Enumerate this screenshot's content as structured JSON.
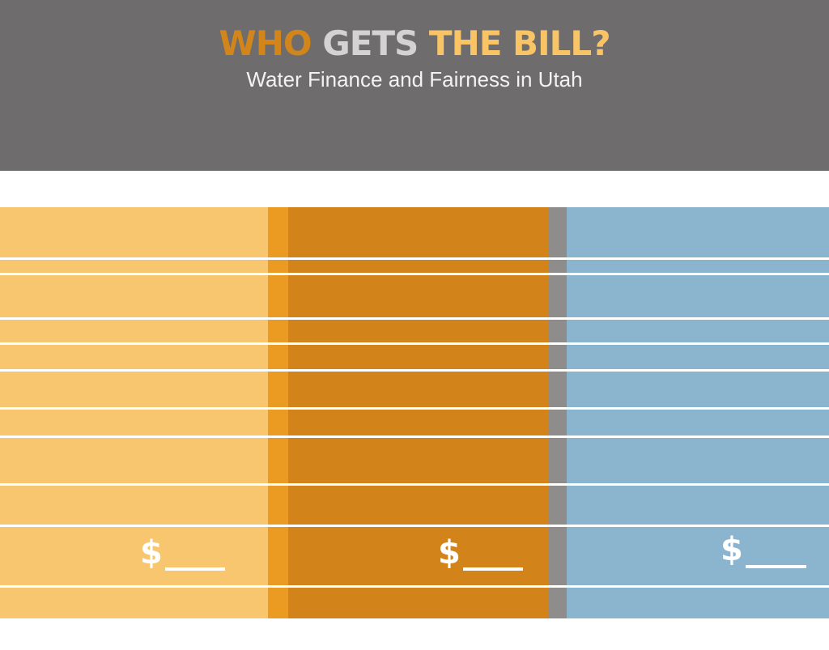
{
  "header": {
    "title_word1": "WHO",
    "title_word2": "GETS",
    "title_word3": "THE BILL?",
    "subtitle": "Water Finance and Fairness in Utah"
  },
  "columns": [
    {
      "amount_symbol": "$",
      "color": "#f8c66e"
    },
    {
      "amount_symbol": "$",
      "color": "#d2841a"
    },
    {
      "amount_symbol": "$",
      "color": "#8bb4cf"
    }
  ],
  "colors": {
    "header_bg": "#6e6c6d",
    "title_accent_dark": "#d1851a",
    "title_neutral": "#d4d3d3",
    "title_accent_light": "#f9c466",
    "separator_orange": "#ec9b22",
    "separator_grey": "#8f8d8c"
  }
}
